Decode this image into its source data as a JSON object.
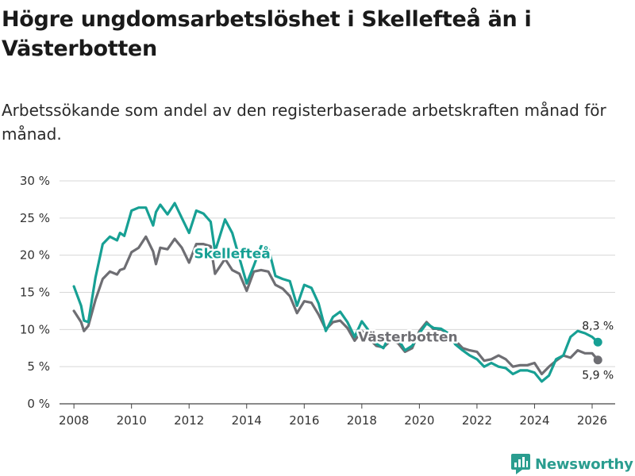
{
  "header": {
    "title": "Högre ungdomsarbetslöshet i Skellefteå än i Västerbotten",
    "subtitle": "Arbetssökande som andel av den registerbaserade arbetskraften månad för månad."
  },
  "footer": {
    "brand": "Newsworthy"
  },
  "colors": {
    "skelleftea": "#17a094",
    "vasterbotten": "#6e6e73",
    "grid": "#d7d7d7"
  },
  "chart_data": {
    "type": "line",
    "title": "Högre ungdomsarbetslöshet i Skellefteå än i Västerbotten",
    "subtitle": "Arbetssökande som andel av den registerbaserade arbetskraften månad för månad.",
    "xlabel": "",
    "ylabel": "",
    "xlim": [
      2007.5,
      2026.8
    ],
    "ylim": [
      0,
      30
    ],
    "xticks": [
      2008,
      2010,
      2012,
      2014,
      2016,
      2018,
      2020,
      2022,
      2024,
      2026
    ],
    "xtick_labels": [
      "2008",
      "2010",
      "2012",
      "2014",
      "2016",
      "2018",
      "2020",
      "2022",
      "2024",
      "2026"
    ],
    "yticks": [
      0,
      5,
      10,
      15,
      20,
      25,
      30
    ],
    "ytick_labels": [
      "0 %",
      "5 %",
      "10 %",
      "15 %",
      "20 %",
      "25 %",
      "30 %"
    ],
    "grid": true,
    "series": [
      {
        "name": "Skellefteå",
        "label": "Skellefteå",
        "end_label": "8,3 %",
        "x": [
          2008.0,
          2008.25,
          2008.35,
          2008.5,
          2008.75,
          2009.0,
          2009.25,
          2009.5,
          2009.6,
          2009.75,
          2010.0,
          2010.25,
          2010.5,
          2010.75,
          2010.85,
          2011.0,
          2011.25,
          2011.5,
          2011.75,
          2012.0,
          2012.25,
          2012.5,
          2012.75,
          2012.9,
          2013.25,
          2013.5,
          2013.75,
          2014.0,
          2014.25,
          2014.5,
          2014.75,
          2015.0,
          2015.25,
          2015.5,
          2015.75,
          2016.0,
          2016.25,
          2016.5,
          2016.75,
          2017.0,
          2017.25,
          2017.5,
          2017.75,
          2018.0,
          2018.25,
          2018.5,
          2018.75,
          2019.0,
          2019.25,
          2019.5,
          2019.75,
          2020.0,
          2020.25,
          2020.5,
          2020.75,
          2021.0,
          2021.25,
          2021.5,
          2021.75,
          2022.0,
          2022.25,
          2022.5,
          2022.75,
          2023.0,
          2023.25,
          2023.5,
          2023.75,
          2024.0,
          2024.25,
          2024.5,
          2024.75,
          2025.0,
          2025.25,
          2025.5,
          2025.75,
          2026.0,
          2026.2
        ],
        "values": [
          15.8,
          13.2,
          11.2,
          11.0,
          17.0,
          21.5,
          22.5,
          22.0,
          23.0,
          22.6,
          26.0,
          26.4,
          26.4,
          24.0,
          25.8,
          26.8,
          25.5,
          27.0,
          25.0,
          23.0,
          26.0,
          25.6,
          24.5,
          20.5,
          24.8,
          23.0,
          19.6,
          16.2,
          18.6,
          21.2,
          21.0,
          17.2,
          16.8,
          16.5,
          13.2,
          16.0,
          15.6,
          13.5,
          9.8,
          11.7,
          12.4,
          11.0,
          9.0,
          11.1,
          9.8,
          8.1,
          7.5,
          9.5,
          8.8,
          7.2,
          7.8,
          9.5,
          10.8,
          10.2,
          10.1,
          9.5,
          8.0,
          7.2,
          6.5,
          6.0,
          5.0,
          5.5,
          5.0,
          4.8,
          4.0,
          4.5,
          4.5,
          4.2,
          3.0,
          3.8,
          6.0,
          6.5,
          9.0,
          9.8,
          9.5,
          9.0,
          8.3
        ]
      },
      {
        "name": "Västerbotten",
        "label": "Västerbotten",
        "end_label": "5,9 %",
        "x": [
          2008.0,
          2008.25,
          2008.35,
          2008.5,
          2008.75,
          2009.0,
          2009.25,
          2009.5,
          2009.6,
          2009.75,
          2010.0,
          2010.25,
          2010.5,
          2010.75,
          2010.85,
          2011.0,
          2011.25,
          2011.5,
          2011.75,
          2012.0,
          2012.25,
          2012.5,
          2012.75,
          2012.9,
          2013.25,
          2013.5,
          2013.75,
          2014.0,
          2014.25,
          2014.5,
          2014.75,
          2015.0,
          2015.25,
          2015.5,
          2015.75,
          2016.0,
          2016.25,
          2016.5,
          2016.75,
          2017.0,
          2017.25,
          2017.5,
          2017.75,
          2018.0,
          2018.25,
          2018.5,
          2018.75,
          2019.0,
          2019.25,
          2019.5,
          2019.75,
          2020.0,
          2020.25,
          2020.5,
          2020.75,
          2021.0,
          2021.25,
          2021.5,
          2021.75,
          2022.0,
          2022.25,
          2022.5,
          2022.75,
          2023.0,
          2023.25,
          2023.5,
          2023.75,
          2024.0,
          2024.25,
          2024.5,
          2024.75,
          2025.0,
          2025.25,
          2025.5,
          2025.75,
          2026.0,
          2026.2
        ],
        "values": [
          12.5,
          11.0,
          9.8,
          10.5,
          14.0,
          16.8,
          17.8,
          17.4,
          18.0,
          18.2,
          20.4,
          21.0,
          22.5,
          20.5,
          18.8,
          21.0,
          20.8,
          22.2,
          21.0,
          19.0,
          21.5,
          21.5,
          21.2,
          17.5,
          19.5,
          18.0,
          17.5,
          15.2,
          17.8,
          18.0,
          17.8,
          16.0,
          15.5,
          14.5,
          12.2,
          13.8,
          13.6,
          12.0,
          10.0,
          11.0,
          11.2,
          10.2,
          8.5,
          9.8,
          8.8,
          7.8,
          7.6,
          8.5,
          8.2,
          7.0,
          7.5,
          9.8,
          11.0,
          10.0,
          10.0,
          9.5,
          8.5,
          7.5,
          7.2,
          7.0,
          5.8,
          6.0,
          6.5,
          6.0,
          5.0,
          5.2,
          5.2,
          5.5,
          4.0,
          5.0,
          5.8,
          6.5,
          6.2,
          7.2,
          6.8,
          6.8,
          5.9
        ]
      }
    ]
  }
}
